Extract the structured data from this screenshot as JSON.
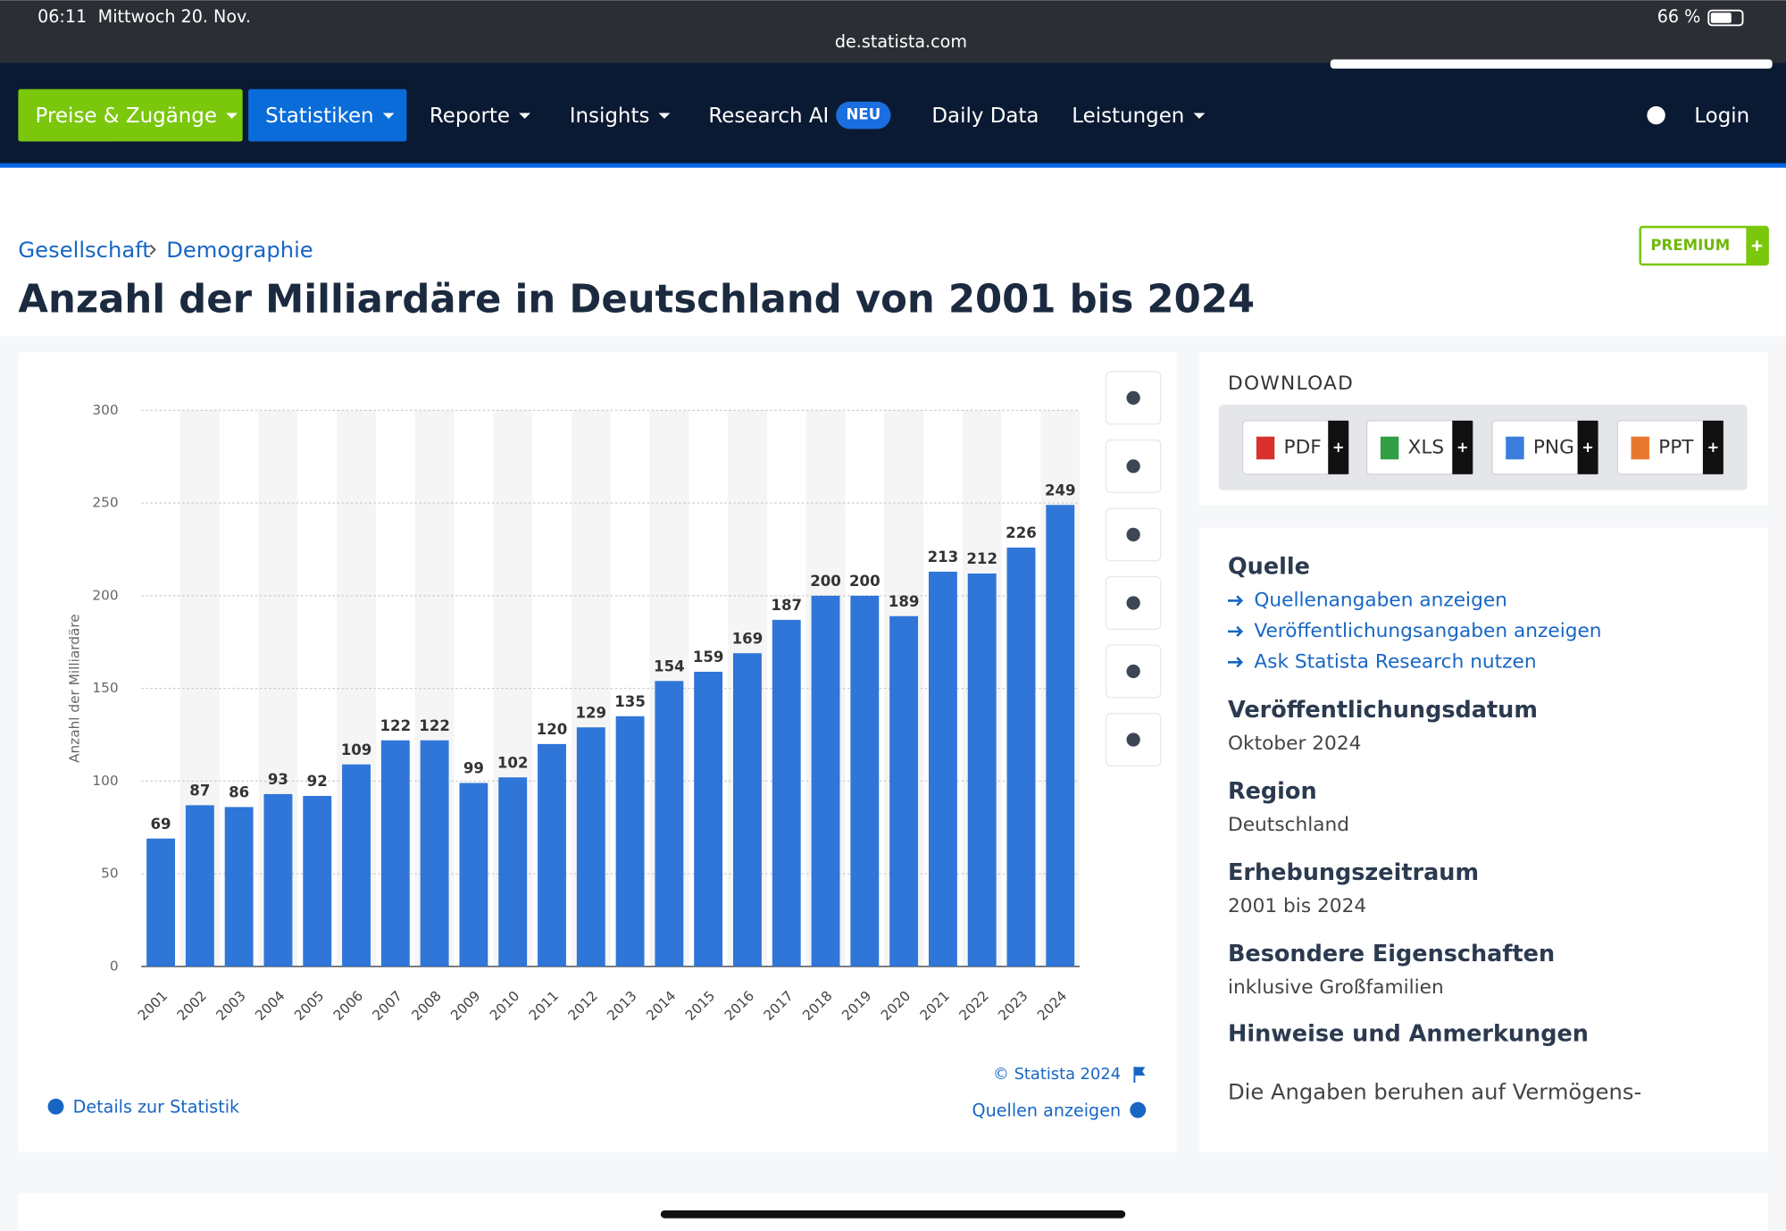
{
  "status_bar": {
    "time": "06:11",
    "date": "Mittwoch 20. Nov.",
    "url": "de.statista.com",
    "battery": "66 %"
  },
  "nav": {
    "items": [
      "Preise & Zugänge",
      "Statistiken",
      "Reporte",
      "Insights",
      "Research AI",
      "Daily Data",
      "Leistungen"
    ],
    "badge": "NEU",
    "login": "Login"
  },
  "breadcrumb": [
    "Gesellschaft",
    "Demographie"
  ],
  "premium": "PREMIUM",
  "title": "Anzahl der Milliardäre in Deutschland von 2001 bis 2024",
  "chart_data": {
    "type": "bar",
    "y_label": "Anzahl der Milliardäre",
    "categories": [
      "2001",
      "2002",
      "2003",
      "2004",
      "2005",
      "2006",
      "2007",
      "2008",
      "2009",
      "2010",
      "2011",
      "2012",
      "2013",
      "2014",
      "2015",
      "2016",
      "2017",
      "2018",
      "2019",
      "2020",
      "2021",
      "2022",
      "2023",
      "2024"
    ],
    "values": [
      69,
      87,
      86,
      93,
      92,
      109,
      122,
      122,
      99,
      102,
      120,
      129,
      135,
      154,
      159,
      169,
      187,
      200,
      200,
      189,
      213,
      212,
      226,
      249
    ],
    "color": "#2f76d8",
    "ylim": [
      0,
      300
    ],
    "yticks": [
      0,
      50,
      100,
      150,
      200,
      250,
      300
    ],
    "grid": true,
    "credit": "© Statista 2024"
  },
  "chart_footer": {
    "details": "Details zur Statistik",
    "sources": "Quellen anzeigen"
  },
  "download": {
    "title": "DOWNLOAD",
    "formats": [
      "PDF",
      "XLS",
      "PNG",
      "PPT"
    ]
  },
  "info": {
    "source_title": "Quelle",
    "links": [
      "Quellenangaben anzeigen",
      "Veröffentlichungsangaben anzeigen",
      "Ask Statista Research nutzen"
    ],
    "sections": [
      {
        "heading": "Veröffentlichungsdatum",
        "text": "Oktober 2024"
      },
      {
        "heading": "Region",
        "text": "Deutschland"
      },
      {
        "heading": "Erhebungszeitraum",
        "text": "2001 bis 2024"
      },
      {
        "heading": "Besondere Eigenschaften",
        "text": "inklusive Großfamilien"
      }
    ],
    "notes_heading": "Hinweise und Anmerkungen",
    "notes_text": "Die Angaben beruhen auf Vermögens-"
  }
}
